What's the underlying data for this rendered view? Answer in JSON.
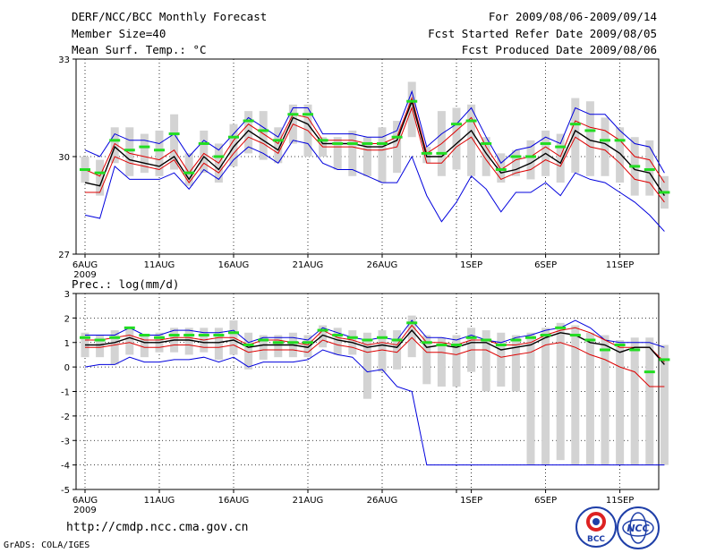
{
  "header": {
    "title": "DERF/NCC/BCC Monthly Forecast",
    "member_size": "Member Size=40",
    "variable": "Mean Surf. Temp.: °C",
    "period": "For 2009/08/06-2009/09/14",
    "fcst_started": "Fcst Started Refer Date 2009/08/05",
    "fcst_produced": "Fcst Produced Date 2009/08/06"
  },
  "footer": {
    "url": "http://cmdp.ncc.cma.gov.cn",
    "credit": "GrADS: COLA/IGES",
    "logo_left_text": "BCC",
    "logo_right_text": "NCC"
  },
  "colors": {
    "box": "#d3d3d3",
    "median": "#22dd22",
    "max_line": "#0000dd",
    "min_line": "#0000dd",
    "sd_line": "#dd0000",
    "mean_line": "#000000",
    "grid": "#000000"
  },
  "chart_data": [
    {
      "type": "line",
      "title": "Mean Surf. Temp.: °C",
      "ylim": [
        27,
        33
      ],
      "yticks": [
        "27",
        "30",
        "33"
      ],
      "x_tick_days": [
        1,
        6,
        11,
        16,
        21,
        26,
        27,
        32,
        37
      ],
      "x_tick_labels": [
        "6AUG",
        "11AUG",
        "16AUG",
        "21AUG",
        "26AUG",
        "1SEP",
        "6SEP",
        "11SEP"
      ],
      "x_tick_label_days": [
        1,
        6,
        11,
        16,
        21,
        27,
        32,
        37
      ],
      "x_first_year": "2009",
      "days": 40,
      "series": [
        {
          "name": "max",
          "values": [
            30.2,
            30.0,
            30.7,
            30.5,
            30.5,
            30.4,
            30.7,
            30.0,
            30.5,
            30.2,
            30.7,
            31.2,
            30.9,
            30.6,
            31.5,
            31.5,
            30.7,
            30.7,
            30.7,
            30.6,
            30.6,
            30.8,
            32.0,
            30.3,
            30.7,
            31.0,
            31.5,
            30.6,
            29.8,
            30.2,
            30.3,
            30.6,
            30.4,
            31.5,
            31.3,
            31.3,
            30.8,
            30.4,
            30.3,
            29.5
          ]
        },
        {
          "name": "sd_upper",
          "values": [
            29.6,
            29.4,
            30.4,
            30.1,
            30.0,
            29.9,
            30.2,
            29.5,
            30.1,
            29.8,
            30.5,
            31.0,
            30.7,
            30.4,
            31.3,
            31.2,
            30.5,
            30.5,
            30.5,
            30.4,
            30.4,
            30.6,
            31.8,
            30.1,
            30.4,
            30.8,
            31.2,
            30.3,
            29.6,
            29.9,
            30.0,
            30.3,
            30.0,
            31.1,
            30.9,
            30.8,
            30.5,
            30.0,
            29.9,
            29.2
          ]
        },
        {
          "name": "mean",
          "values": [
            29.2,
            29.1,
            30.3,
            29.9,
            29.8,
            29.7,
            30.0,
            29.3,
            30.0,
            29.6,
            30.3,
            30.8,
            30.5,
            30.2,
            31.2,
            31.0,
            30.4,
            30.4,
            30.4,
            30.3,
            30.3,
            30.5,
            31.7,
            30.0,
            30.0,
            30.4,
            30.8,
            30.1,
            29.5,
            29.6,
            29.8,
            30.1,
            29.8,
            30.8,
            30.5,
            30.4,
            30.1,
            29.6,
            29.5,
            28.8
          ]
        },
        {
          "name": "sd_lower",
          "values": [
            28.9,
            28.9,
            30.0,
            29.8,
            29.7,
            29.6,
            29.9,
            29.2,
            29.8,
            29.5,
            30.1,
            30.6,
            30.4,
            30.1,
            31.0,
            30.8,
            30.3,
            30.3,
            30.3,
            30.2,
            30.2,
            30.3,
            31.5,
            29.8,
            29.8,
            30.3,
            30.6,
            29.9,
            29.3,
            29.5,
            29.6,
            29.9,
            29.7,
            30.6,
            30.3,
            30.2,
            29.8,
            29.3,
            29.2,
            28.6
          ]
        },
        {
          "name": "min",
          "values": [
            28.2,
            28.1,
            29.7,
            29.3,
            29.3,
            29.3,
            29.5,
            29.0,
            29.6,
            29.3,
            29.9,
            30.3,
            30.1,
            29.8,
            30.5,
            30.4,
            29.8,
            29.6,
            29.6,
            29.4,
            29.2,
            29.2,
            30.0,
            28.8,
            28.0,
            28.6,
            29.4,
            29.0,
            28.3,
            28.9,
            28.9,
            29.2,
            28.8,
            29.5,
            29.3,
            29.2,
            28.9,
            28.6,
            28.2,
            27.7
          ]
        }
      ],
      "box_low": [
        29.2,
        28.8,
        29.8,
        29.4,
        29.5,
        29.4,
        29.6,
        29.1,
        29.5,
        29.2,
        29.7,
        30.1,
        29.9,
        29.8,
        30.4,
        30.0,
        30.0,
        29.6,
        29.4,
        29.4,
        29.2,
        29.5,
        30.6,
        29.8,
        29.4,
        29.6,
        29.4,
        29.4,
        29.2,
        29.4,
        29.3,
        29.4,
        29.2,
        29.5,
        29.4,
        29.4,
        29.2,
        28.8,
        28.8,
        28.4
      ],
      "box_high": [
        30.0,
        29.9,
        30.9,
        30.9,
        30.7,
        30.8,
        31.3,
        30.1,
        30.8,
        30.4,
        31.0,
        31.4,
        31.4,
        30.9,
        31.6,
        31.6,
        30.6,
        30.6,
        30.8,
        30.6,
        30.9,
        31.1,
        32.3,
        30.3,
        31.4,
        31.5,
        31.6,
        30.6,
        30.1,
        30.2,
        30.5,
        30.8,
        30.7,
        31.8,
        31.7,
        31.2,
        30.9,
        30.6,
        30.5,
        29.4
      ],
      "median": [
        29.6,
        29.5,
        30.5,
        30.2,
        30.3,
        30.2,
        30.7,
        29.5,
        30.4,
        30.0,
        30.6,
        31.1,
        30.8,
        30.5,
        31.3,
        31.3,
        30.5,
        30.4,
        30.4,
        30.4,
        30.4,
        30.6,
        31.7,
        30.1,
        30.1,
        31.0,
        31.1,
        30.4,
        29.6,
        30.0,
        30.0,
        30.4,
        30.3,
        31.0,
        30.8,
        30.5,
        30.5,
        29.7,
        29.6,
        28.9
      ]
    },
    {
      "type": "line",
      "title": "Prec.: log(mm/d)",
      "ylim": [
        -5,
        3
      ],
      "yticks": [
        "-5",
        "-4",
        "-3",
        "-2",
        "-1",
        "0",
        "1",
        "2",
        "3"
      ],
      "x_tick_days": [
        1,
        6,
        11,
        16,
        21,
        26,
        27,
        32,
        37
      ],
      "x_tick_labels": [
        "6AUG",
        "11AUG",
        "16AUG",
        "21AUG",
        "26AUG",
        "1SEP",
        "6SEP",
        "11SEP"
      ],
      "x_tick_label_days": [
        1,
        6,
        11,
        16,
        21,
        27,
        32,
        37
      ],
      "x_first_year": "2009",
      "days": 40,
      "series": [
        {
          "name": "max",
          "values": [
            1.3,
            1.3,
            1.3,
            1.6,
            1.3,
            1.3,
            1.5,
            1.5,
            1.4,
            1.4,
            1.5,
            1.0,
            1.2,
            1.2,
            1.2,
            1.1,
            1.6,
            1.4,
            1.2,
            1.1,
            1.2,
            1.1,
            1.9,
            1.2,
            1.2,
            1.1,
            1.3,
            1.1,
            1.0,
            1.2,
            1.3,
            1.5,
            1.6,
            1.9,
            1.6,
            1.1,
            1.0,
            1.0,
            1.0,
            0.8
          ]
        },
        {
          "name": "sd_upper",
          "values": [
            1.1,
            1.1,
            1.2,
            1.3,
            1.1,
            1.1,
            1.2,
            1.2,
            1.1,
            1.2,
            1.2,
            0.9,
            1.1,
            1.1,
            1.0,
            0.9,
            1.5,
            1.2,
            1.1,
            0.9,
            1.0,
            0.9,
            1.7,
            1.0,
            1.0,
            0.9,
            1.1,
            1.1,
            0.9,
            0.9,
            1.0,
            1.3,
            1.5,
            1.6,
            1.4,
            1.1,
            0.8,
            0.8,
            0.8,
            0.2
          ]
        },
        {
          "name": "mean",
          "values": [
            0.9,
            0.9,
            1.0,
            1.2,
            1.0,
            1.0,
            1.1,
            1.1,
            1.0,
            1.0,
            1.1,
            0.8,
            0.9,
            0.9,
            0.9,
            0.8,
            1.3,
            1.1,
            1.0,
            0.8,
            0.9,
            0.8,
            1.5,
            0.8,
            0.9,
            0.8,
            1.0,
            1.0,
            0.7,
            0.8,
            0.9,
            1.2,
            1.4,
            1.3,
            1.0,
            0.9,
            0.6,
            0.8,
            0.8,
            0.1
          ]
        },
        {
          "name": "sd_lower",
          "values": [
            0.8,
            0.8,
            0.9,
            1.0,
            0.8,
            0.8,
            0.9,
            0.9,
            0.8,
            0.8,
            0.9,
            0.6,
            0.7,
            0.7,
            0.7,
            0.6,
            1.1,
            0.9,
            0.8,
            0.6,
            0.7,
            0.6,
            1.2,
            0.6,
            0.6,
            0.5,
            0.7,
            0.7,
            0.4,
            0.5,
            0.6,
            0.9,
            1.0,
            0.8,
            0.5,
            0.3,
            0.0,
            -0.2,
            -0.8,
            -0.8
          ]
        },
        {
          "name": "min",
          "values": [
            0.0,
            0.1,
            0.1,
            0.4,
            0.2,
            0.2,
            0.3,
            0.3,
            0.4,
            0.2,
            0.4,
            0.0,
            0.2,
            0.2,
            0.2,
            0.3,
            0.7,
            0.5,
            0.4,
            -0.2,
            -0.1,
            -0.8,
            -1.0,
            -4.0,
            -4.0,
            -4.0,
            -4.0,
            -4.0,
            -4.0,
            -4.0,
            -4.0,
            -4.0,
            -4.0,
            -4.0,
            -4.0,
            -4.0,
            -4.0,
            -4.0,
            -4.0,
            -4.0
          ]
        }
      ],
      "box_low": [
        0.4,
        0.4,
        0.1,
        0.5,
        0.4,
        0.6,
        0.6,
        0.5,
        0.6,
        0.3,
        0.5,
        -0.1,
        0.3,
        0.4,
        0.4,
        0.4,
        0.8,
        0.5,
        0.5,
        -1.3,
        -0.2,
        -0.1,
        0.4,
        -0.7,
        -0.8,
        -0.8,
        -0.2,
        -1.0,
        -0.8,
        -1.0,
        -4.0,
        -4.0,
        -3.8,
        -4.0,
        -4.0,
        -4.0,
        -4.0,
        -4.0,
        -4.0,
        -4.0
      ],
      "box_high": [
        1.4,
        1.3,
        1.5,
        1.6,
        1.3,
        1.4,
        1.6,
        1.6,
        1.6,
        1.6,
        1.9,
        1.4,
        1.3,
        1.3,
        1.4,
        1.3,
        1.7,
        1.6,
        1.5,
        1.4,
        1.5,
        1.5,
        2.1,
        1.3,
        1.2,
        1.3,
        1.6,
        1.5,
        1.4,
        1.3,
        1.4,
        1.6,
        1.8,
        1.7,
        1.4,
        1.3,
        1.1,
        1.2,
        1.2,
        0.9
      ],
      "median": [
        1.2,
        1.1,
        1.2,
        1.6,
        1.3,
        1.2,
        1.3,
        1.3,
        1.3,
        1.3,
        1.4,
        0.9,
        1.1,
        1.0,
        1.0,
        1.0,
        1.5,
        1.3,
        1.2,
        1.1,
        1.2,
        1.1,
        1.8,
        1.0,
        0.9,
        0.9,
        1.2,
        1.1,
        0.9,
        1.1,
        1.2,
        1.3,
        1.6,
        1.3,
        1.1,
        0.7,
        0.9,
        0.7,
        -0.2,
        0.3
      ]
    }
  ]
}
